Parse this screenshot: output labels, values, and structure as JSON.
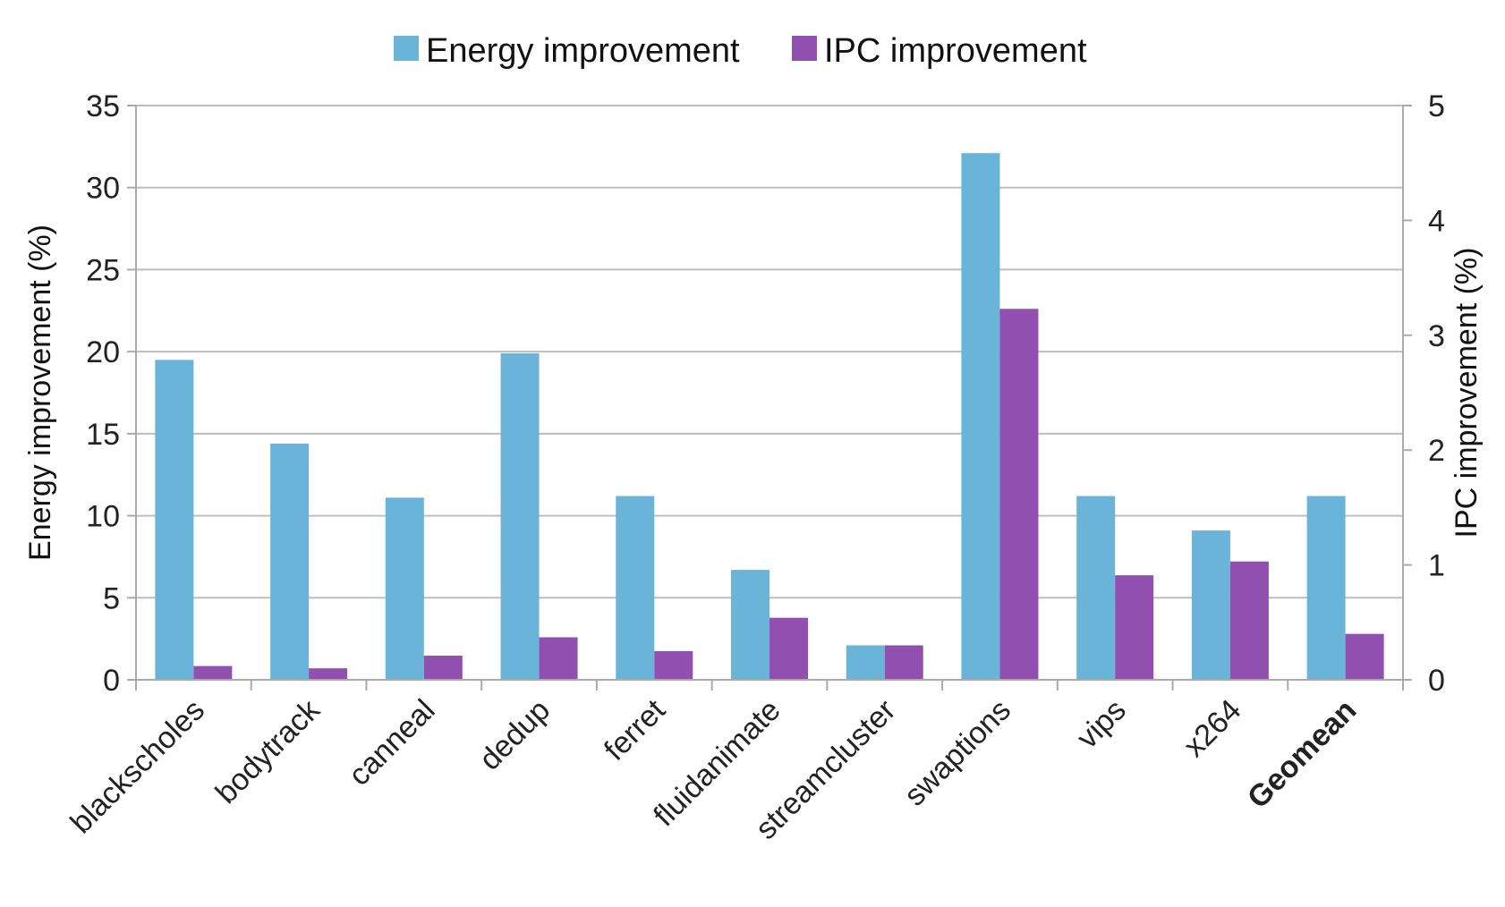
{
  "chart_data": {
    "type": "bar",
    "categories": [
      "blackscholes",
      "bodytrack",
      "canneal",
      "dedup",
      "ferret",
      "fluidanimate",
      "streamcluster",
      "swaptions",
      "vips",
      "x264",
      "Geomean"
    ],
    "bold_categories": [
      "Geomean"
    ],
    "series": [
      {
        "name": "Energy improvement",
        "axis": "left",
        "color": "#6ab4da",
        "values": [
          19.5,
          14.4,
          11.1,
          19.9,
          11.2,
          6.7,
          2.1,
          32.1,
          11.2,
          9.1,
          11.2
        ]
      },
      {
        "name": "IPC improvement",
        "axis": "right",
        "color": "#9150b0",
        "values": [
          0.12,
          0.1,
          0.21,
          0.37,
          0.25,
          0.54,
          0.3,
          3.23,
          0.91,
          1.03,
          0.4
        ]
      }
    ],
    "ylabel": "Energy improvement (%)",
    "ylim": [
      0,
      35
    ],
    "yticks": [
      0,
      5,
      10,
      15,
      20,
      25,
      30,
      35
    ],
    "y2label": "IPC improvement (%)",
    "y2lim": [
      0,
      5
    ],
    "y2ticks": [
      0,
      1,
      2,
      3,
      4,
      5
    ],
    "grid": true,
    "legend_position": "top-center"
  }
}
